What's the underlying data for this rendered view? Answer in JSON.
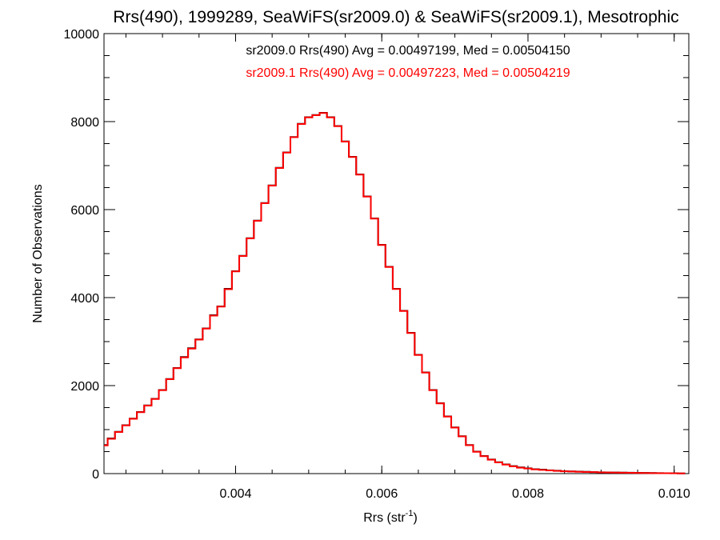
{
  "chart_data": {
    "type": "line",
    "title": "Rrs(490), 1999289, SeaWiFS(sr2009.0) & SeaWiFS(sr2009.1), Mesotrophic",
    "xlabel": "Rrs (str",
    "xlabel_sup": "-1",
    "xlabel_close": ")",
    "ylabel": "Number of Observations",
    "xlim": [
      0.0022,
      0.0102
    ],
    "ylim": [
      0,
      10000
    ],
    "x_ticks": [
      {
        "value": 0.004,
        "label": "0.004"
      },
      {
        "value": 0.006,
        "label": "0.006"
      },
      {
        "value": 0.008,
        "label": "0.008"
      },
      {
        "value": 0.01,
        "label": "0.010"
      }
    ],
    "y_ticks": [
      {
        "value": 0,
        "label": "0"
      },
      {
        "value": 2000,
        "label": "2000"
      },
      {
        "value": 4000,
        "label": "4000"
      },
      {
        "value": 6000,
        "label": "6000"
      },
      {
        "value": 8000,
        "label": "8000"
      },
      {
        "value": 10000,
        "label": "10000"
      }
    ],
    "annotations": [
      {
        "text": "sr2009.0 Rrs(490) Avg = 0.00497199, Med = 0.00504150",
        "color": "#000000"
      },
      {
        "text": "sr2009.1 Rrs(490) Avg = 0.00497223, Med = 0.00504219",
        "color": "#ff0000"
      }
    ],
    "x": [
      0.0022,
      0.0023,
      0.0024,
      0.0025,
      0.0026,
      0.0027,
      0.0028,
      0.0029,
      0.003,
      0.0031,
      0.0032,
      0.0033,
      0.0034,
      0.0035,
      0.0036,
      0.0037,
      0.0038,
      0.0039,
      0.004,
      0.0041,
      0.0042,
      0.0043,
      0.0044,
      0.0045,
      0.0046,
      0.0047,
      0.0048,
      0.0049,
      0.005,
      0.0051,
      0.0052,
      0.0053,
      0.0054,
      0.0055,
      0.0056,
      0.0057,
      0.0058,
      0.0059,
      0.006,
      0.0061,
      0.0062,
      0.0063,
      0.0064,
      0.0065,
      0.0066,
      0.0067,
      0.0068,
      0.0069,
      0.007,
      0.0071,
      0.0072,
      0.0073,
      0.0074,
      0.0075,
      0.0076,
      0.0077,
      0.0078,
      0.0079,
      0.008,
      0.0081,
      0.0082,
      0.0083,
      0.0084,
      0.0085,
      0.0086,
      0.0087,
      0.0088,
      0.0089,
      0.009,
      0.0091,
      0.0092,
      0.0093,
      0.0094,
      0.0095,
      0.0096,
      0.0097,
      0.0098,
      0.0099,
      0.01,
      0.0101
    ],
    "series": [
      {
        "name": "sr2009.0",
        "color": "#000000",
        "values": [
          650,
          800,
          950,
          1100,
          1250,
          1400,
          1550,
          1700,
          1900,
          2150,
          2400,
          2650,
          2850,
          3050,
          3300,
          3600,
          3800,
          4200,
          4600,
          4950,
          5350,
          5750,
          6150,
          6550,
          6950,
          7300,
          7650,
          7950,
          8100,
          8150,
          8200,
          8100,
          7900,
          7550,
          7200,
          6800,
          6300,
          5800,
          5200,
          4700,
          4200,
          3700,
          3200,
          2700,
          2300,
          1900,
          1600,
          1300,
          1050,
          850,
          650,
          500,
          400,
          320,
          260,
          210,
          170,
          140,
          120,
          100,
          90,
          75,
          65,
          55,
          50,
          45,
          40,
          35,
          30,
          28,
          25,
          22,
          20,
          18,
          15,
          13,
          12,
          10,
          8,
          5
        ]
      },
      {
        "name": "sr2009.1",
        "color": "#ff0000",
        "values": [
          640,
          790,
          945,
          1095,
          1245,
          1395,
          1545,
          1695,
          1895,
          2145,
          2395,
          2640,
          2840,
          3045,
          3295,
          3590,
          3795,
          4190,
          4595,
          4945,
          5345,
          5745,
          6145,
          6545,
          6945,
          7295,
          7645,
          7945,
          8095,
          8145,
          8195,
          8095,
          7895,
          7545,
          7195,
          6795,
          6295,
          5795,
          5195,
          4695,
          4195,
          3695,
          3195,
          2695,
          2295,
          1895,
          1595,
          1295,
          1045,
          845,
          645,
          495,
          395,
          315,
          255,
          205,
          165,
          135,
          115,
          95,
          85,
          72,
          62,
          52,
          47,
          42,
          37,
          33,
          28,
          26,
          23,
          20,
          18,
          16,
          13,
          11,
          10,
          8,
          6,
          4
        ]
      }
    ],
    "grid": false
  }
}
